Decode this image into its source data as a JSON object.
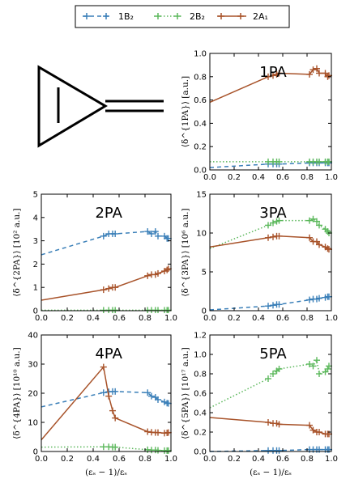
{
  "legend": {
    "entries": [
      {
        "label": "1B₂",
        "color": "#3a7fb8",
        "dash": "5,4"
      },
      {
        "label": "2B₂",
        "color": "#5cb85c",
        "dash": "1.5,2.5"
      },
      {
        "label": "2A₁",
        "color": "#a8532a",
        "dash": ""
      }
    ]
  },
  "chart_data": [
    {
      "type": "line",
      "title": "1PA",
      "xlabel": "",
      "ylabel": "⟨δ^{1PA}⟩ [a.u.]",
      "xlim": [
        0,
        1
      ],
      "ylim": [
        0,
        1
      ],
      "xticks": [
        "0.0",
        "0.2",
        "0.4",
        "0.6",
        "0.8",
        "1.0"
      ],
      "yticks": [
        "0.0",
        "0.2",
        "0.4",
        "0.6",
        "0.8",
        "1.0"
      ],
      "series": [
        {
          "name": "1B₂",
          "x": [
            0,
            0.48,
            0.52,
            0.55,
            0.57,
            0.82,
            0.85,
            0.88,
            0.9,
            0.95,
            0.97,
            0.98
          ],
          "y": [
            0.02,
            0.05,
            0.05,
            0.05,
            0.05,
            0.06,
            0.06,
            0.06,
            0.06,
            0.06,
            0.06,
            0.06
          ]
        },
        {
          "name": "2B₂",
          "x": [
            0,
            0.48,
            0.52,
            0.55,
            0.57,
            0.82,
            0.85,
            0.88,
            0.9,
            0.95,
            0.97,
            0.98
          ],
          "y": [
            0.07,
            0.07,
            0.07,
            0.07,
            0.07,
            0.07,
            0.07,
            0.07,
            0.07,
            0.07,
            0.07,
            0.07
          ]
        },
        {
          "name": "2A₁",
          "x": [
            0,
            0.48,
            0.52,
            0.55,
            0.57,
            0.82,
            0.85,
            0.88,
            0.9,
            0.95,
            0.97,
            0.98
          ],
          "y": [
            0.58,
            0.8,
            0.81,
            0.82,
            0.83,
            0.82,
            0.86,
            0.87,
            0.83,
            0.83,
            0.8,
            0.81
          ]
        }
      ]
    },
    {
      "type": "line",
      "title": "2PA",
      "xlabel": "",
      "ylabel": "⟨δ^{2PA}⟩ [10² a.u.]",
      "xlim": [
        0,
        1
      ],
      "ylim": [
        0,
        5
      ],
      "xticks": [
        "0.0",
        "0.2",
        "0.4",
        "0.6",
        "0.8",
        "1.0"
      ],
      "yticks": [
        "0",
        "1",
        "2",
        "3",
        "4",
        "5"
      ],
      "series": [
        {
          "name": "1B₂",
          "x": [
            0,
            0.48,
            0.52,
            0.55,
            0.57,
            0.82,
            0.85,
            0.88,
            0.9,
            0.95,
            0.97,
            0.98
          ],
          "y": [
            2.4,
            3.2,
            3.3,
            3.3,
            3.3,
            3.4,
            3.3,
            3.4,
            3.2,
            3.2,
            3.1,
            3.1
          ]
        },
        {
          "name": "2B₂",
          "x": [
            0,
            0.48,
            0.52,
            0.55,
            0.57,
            0.82,
            0.85,
            0.88,
            0.9,
            0.95,
            0.97,
            0.98
          ],
          "y": [
            0.02,
            0.02,
            0.02,
            0.02,
            0.02,
            0.02,
            0.02,
            0.02,
            0.02,
            0.02,
            0.02,
            0.02
          ]
        },
        {
          "name": "2A₁",
          "x": [
            0,
            0.48,
            0.52,
            0.55,
            0.57,
            0.82,
            0.85,
            0.88,
            0.9,
            0.95,
            0.97,
            0.98
          ],
          "y": [
            0.45,
            0.9,
            0.95,
            1.0,
            1.0,
            1.5,
            1.55,
            1.55,
            1.6,
            1.7,
            1.75,
            1.8
          ]
        }
      ]
    },
    {
      "type": "line",
      "title": "3PA",
      "xlabel": "",
      "ylabel": "⟨δ^{3PA}⟩ [10⁶ a.u.]",
      "xlim": [
        0,
        1
      ],
      "ylim": [
        0,
        15
      ],
      "xticks": [
        "0.0",
        "0.2",
        "0.4",
        "0.6",
        "0.8",
        "1.0"
      ],
      "yticks": [
        "0",
        "5",
        "10",
        "15"
      ],
      "series": [
        {
          "name": "1B₂",
          "x": [
            0,
            0.48,
            0.52,
            0.55,
            0.57,
            0.82,
            0.85,
            0.88,
            0.9,
            0.95,
            0.97,
            0.98
          ],
          "y": [
            0.1,
            0.6,
            0.7,
            0.8,
            0.8,
            1.4,
            1.5,
            1.5,
            1.6,
            1.7,
            1.8,
            1.8
          ]
        },
        {
          "name": "2B₂",
          "x": [
            0,
            0.48,
            0.52,
            0.55,
            0.57,
            0.82,
            0.85,
            0.88,
            0.9,
            0.95,
            0.97,
            0.98
          ],
          "y": [
            8.0,
            11.0,
            11.3,
            11.5,
            11.6,
            11.6,
            11.8,
            11.5,
            11.0,
            10.5,
            10.2,
            10.0
          ]
        },
        {
          "name": "2A₁",
          "x": [
            0,
            0.48,
            0.52,
            0.55,
            0.57,
            0.82,
            0.85,
            0.88,
            0.9,
            0.95,
            0.97,
            0.98
          ],
          "y": [
            8.2,
            9.4,
            9.5,
            9.6,
            9.6,
            9.4,
            8.9,
            8.9,
            8.5,
            8.2,
            8.0,
            7.9
          ]
        }
      ]
    },
    {
      "type": "line",
      "title": "4PA",
      "xlabel": "(εₛ − 1)/εₛ",
      "ylabel": "⟨δ^{4PA}⟩ [10¹⁰ a.u.]",
      "xlim": [
        0,
        1
      ],
      "ylim": [
        0,
        40
      ],
      "xticks": [
        "0.0",
        "0.2",
        "0.4",
        "0.6",
        "0.8",
        "1.0"
      ],
      "yticks": [
        "0",
        "10",
        "20",
        "30",
        "40"
      ],
      "series": [
        {
          "name": "1B₂",
          "x": [
            0,
            0.48,
            0.52,
            0.55,
            0.57,
            0.82,
            0.85,
            0.88,
            0.9,
            0.95,
            0.97,
            0.98
          ],
          "y": [
            15.3,
            20.2,
            20.5,
            20.6,
            20.6,
            20.2,
            19.0,
            18.6,
            17.8,
            17.0,
            16.6,
            16.5
          ]
        },
        {
          "name": "2B₂",
          "x": [
            0,
            0.48,
            0.52,
            0.55,
            0.57,
            0.82,
            0.85,
            0.88,
            0.9,
            0.95,
            0.97,
            0.98
          ],
          "y": [
            1.5,
            1.6,
            1.6,
            1.5,
            1.5,
            0.6,
            0.5,
            0.5,
            0.4,
            0.3,
            0.3,
            0.3
          ]
        },
        {
          "name": "2A₁",
          "x": [
            0,
            0.48,
            0.52,
            0.55,
            0.57,
            0.82,
            0.85,
            0.88,
            0.9,
            0.95,
            0.97,
            0.98
          ],
          "y": [
            4.0,
            29.0,
            19.0,
            14.0,
            11.5,
            6.8,
            6.6,
            6.5,
            6.5,
            6.3,
            6.4,
            6.5
          ]
        }
      ]
    },
    {
      "type": "line",
      "title": "5PA",
      "xlabel": "(εₛ − 1)/εₛ",
      "ylabel": "⟨δ^{5PA}⟩ [10¹⁷ a.u.]",
      "xlim": [
        0,
        1
      ],
      "ylim": [
        0,
        1.2
      ],
      "xticks": [
        "0.0",
        "0.2",
        "0.4",
        "0.6",
        "0.8",
        "1.0"
      ],
      "yticks": [
        "0.0",
        "0.2",
        "0.4",
        "0.6",
        "0.8",
        "1.0",
        "1.2"
      ],
      "series": [
        {
          "name": "1B₂",
          "x": [
            0,
            0.48,
            0.52,
            0.55,
            0.57,
            0.82,
            0.85,
            0.88,
            0.9,
            0.95,
            0.97,
            0.98
          ],
          "y": [
            0.0,
            0.01,
            0.01,
            0.01,
            0.01,
            0.02,
            0.02,
            0.02,
            0.02,
            0.02,
            0.02,
            0.02
          ]
        },
        {
          "name": "2B₂",
          "x": [
            0,
            0.48,
            0.52,
            0.55,
            0.57,
            0.82,
            0.85,
            0.88,
            0.9,
            0.95,
            0.97,
            0.98
          ],
          "y": [
            0.45,
            0.75,
            0.8,
            0.83,
            0.85,
            0.9,
            0.88,
            0.94,
            0.8,
            0.82,
            0.85,
            0.88
          ]
        },
        {
          "name": "2A₁",
          "x": [
            0,
            0.48,
            0.52,
            0.55,
            0.57,
            0.82,
            0.85,
            0.88,
            0.9,
            0.95,
            0.97,
            0.98
          ],
          "y": [
            0.35,
            0.3,
            0.29,
            0.29,
            0.28,
            0.27,
            0.22,
            0.2,
            0.2,
            0.18,
            0.18,
            0.18
          ]
        }
      ]
    }
  ]
}
